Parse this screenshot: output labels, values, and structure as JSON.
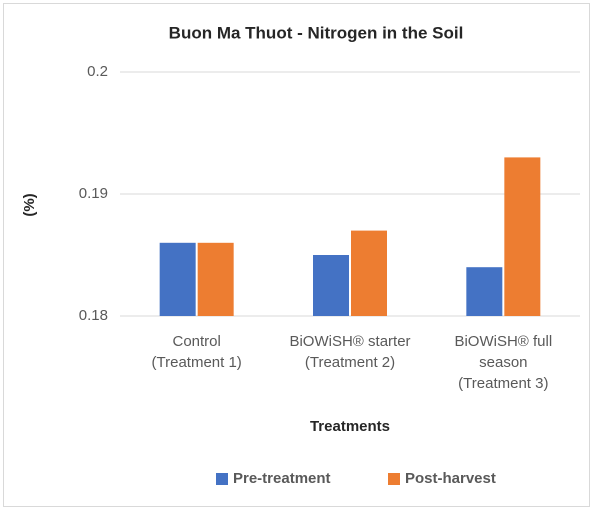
{
  "chart_data": {
    "type": "bar",
    "title": "Buon Ma Thuot - Nitrogen in the Soil",
    "y_label": "(%)",
    "x_label": "Treatments",
    "categories": [
      [
        "Control",
        "(Treatment 1)"
      ],
      [
        "BiOWiSH® starter",
        "(Treatment 2)"
      ],
      [
        "BiOWiSH® full",
        "season",
        "(Treatment 3)"
      ]
    ],
    "series": [
      {
        "name": "Pre-treatment",
        "color": "#4472c4",
        "values": [
          0.186,
          0.185,
          0.184
        ]
      },
      {
        "name": "Post-harvest",
        "color": "#ed7d31",
        "values": [
          0.186,
          0.187,
          0.193
        ]
      }
    ],
    "ylim": [
      0.18,
      0.2
    ],
    "yticks": [
      0.18,
      0.19,
      0.2
    ],
    "grid": true,
    "legend": "bottom"
  }
}
